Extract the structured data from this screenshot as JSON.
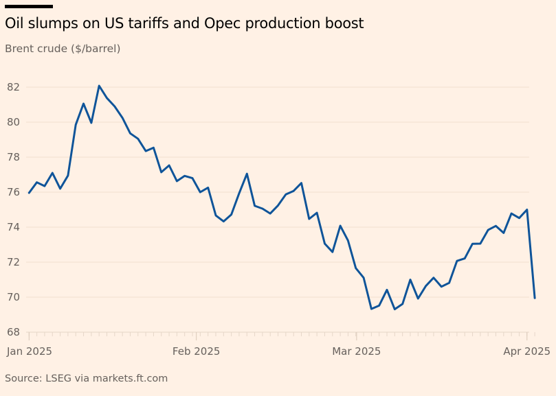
{
  "header": {
    "title": "Oil slumps on US tariffs and Opec production boost",
    "subtitle": "Brent crude ($/barrel)"
  },
  "footer": {
    "source": "Source: LSEG via markets.ft.com"
  },
  "colors": {
    "background": "#fff1e5",
    "line": "#0f5499",
    "grid": "#f2dfce",
    "text": "#66605c"
  },
  "chart_data": {
    "type": "line",
    "title": "Oil slumps on US tariffs and Opec production boost",
    "subtitle": "Brent crude ($/barrel)",
    "ylim": [
      68,
      82
    ],
    "yticks": [
      "68",
      "70",
      "72",
      "74",
      "76",
      "78",
      "80",
      "82"
    ],
    "xticks": [
      {
        "label": "Jan 2025",
        "date": "2025-01"
      },
      {
        "label": "Feb 2025",
        "date": "2025-02"
      },
      {
        "label": "Mar 2025",
        "date": "2025-03"
      },
      {
        "label": "Apr 2025",
        "date": "2025-04"
      }
    ],
    "grid": true,
    "x": [
      "2025-01-02",
      "2025-01-03",
      "2025-01-06",
      "2025-01-07",
      "2025-01-08",
      "2025-01-09",
      "2025-01-10",
      "2025-01-13",
      "2025-01-14",
      "2025-01-15",
      "2025-01-16",
      "2025-01-17",
      "2025-01-20",
      "2025-01-21",
      "2025-01-22",
      "2025-01-23",
      "2025-01-24",
      "2025-01-27",
      "2025-01-28",
      "2025-01-29",
      "2025-01-30",
      "2025-01-31",
      "2025-02-03",
      "2025-02-04",
      "2025-02-05",
      "2025-02-06",
      "2025-02-07",
      "2025-02-10",
      "2025-02-11",
      "2025-02-12",
      "2025-02-13",
      "2025-02-14",
      "2025-02-17",
      "2025-02-18",
      "2025-02-19",
      "2025-02-20",
      "2025-02-21",
      "2025-02-24",
      "2025-02-25",
      "2025-02-26",
      "2025-02-27",
      "2025-02-28",
      "2025-03-03",
      "2025-03-04",
      "2025-03-05",
      "2025-03-06",
      "2025-03-07",
      "2025-03-10",
      "2025-03-11",
      "2025-03-12",
      "2025-03-13",
      "2025-03-14",
      "2025-03-17",
      "2025-03-18",
      "2025-03-19",
      "2025-03-20",
      "2025-03-21",
      "2025-03-24",
      "2025-03-25",
      "2025-03-26",
      "2025-03-27",
      "2025-03-28",
      "2025-03-31",
      "2025-04-01",
      "2025-04-02",
      "2025-04-03"
    ],
    "series": [
      {
        "values": [
          75.96,
          76.56,
          76.35,
          77.1,
          76.2,
          76.95,
          79.85,
          81.06,
          79.96,
          82.08,
          81.38,
          80.9,
          80.25,
          79.36,
          79.05,
          78.35,
          78.54,
          77.14,
          77.53,
          76.63,
          76.93,
          76.8,
          76.0,
          76.26,
          74.67,
          74.33,
          74.72,
          75.93,
          77.05,
          75.22,
          75.06,
          74.78,
          75.24,
          75.87,
          76.07,
          76.52,
          74.47,
          74.82,
          73.06,
          72.58,
          74.08,
          73.23,
          71.66,
          71.11,
          69.33,
          69.52,
          70.42,
          69.31,
          69.61,
          71.0,
          69.92,
          70.64,
          71.11,
          70.6,
          70.82,
          72.07,
          72.21,
          73.05,
          73.06,
          73.84,
          74.07,
          73.67,
          74.78,
          74.52,
          75.0,
          69.95
        ]
      }
    ]
  }
}
